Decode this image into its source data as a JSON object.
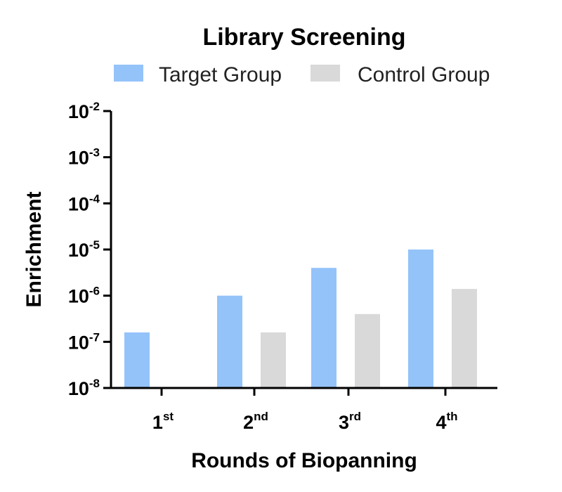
{
  "chart_data": {
    "type": "bar",
    "title": "Library Screening",
    "xlabel": "Rounds of Biopanning",
    "ylabel": "Enrichment",
    "yscale": "log",
    "ylim": [
      1e-08,
      0.01
    ],
    "grid": false,
    "legend_position": "top",
    "categories": [
      {
        "base": "1",
        "sup": "st"
      },
      {
        "base": "2",
        "sup": "nd"
      },
      {
        "base": "3",
        "sup": "rd"
      },
      {
        "base": "4",
        "sup": "th"
      }
    ],
    "y_ticks": [
      {
        "base": "10",
        "exp": "-2",
        "value": 0.01
      },
      {
        "base": "10",
        "exp": "-3",
        "value": 0.001
      },
      {
        "base": "10",
        "exp": "-4",
        "value": 0.0001
      },
      {
        "base": "10",
        "exp": "-5",
        "value": 1e-05
      },
      {
        "base": "10",
        "exp": "-6",
        "value": 1e-06
      },
      {
        "base": "10",
        "exp": "-7",
        "value": 1e-07
      },
      {
        "base": "10",
        "exp": "-8",
        "value": 1e-08
      }
    ],
    "series": [
      {
        "name": "Target Group",
        "color": "#94c3fa",
        "values": [
          1.6e-07,
          1e-06,
          4e-06,
          1e-05
        ]
      },
      {
        "name": "Control Group",
        "color": "#d9d9d9",
        "values": [
          null,
          1.6e-07,
          4e-07,
          1.4e-06
        ]
      }
    ]
  }
}
